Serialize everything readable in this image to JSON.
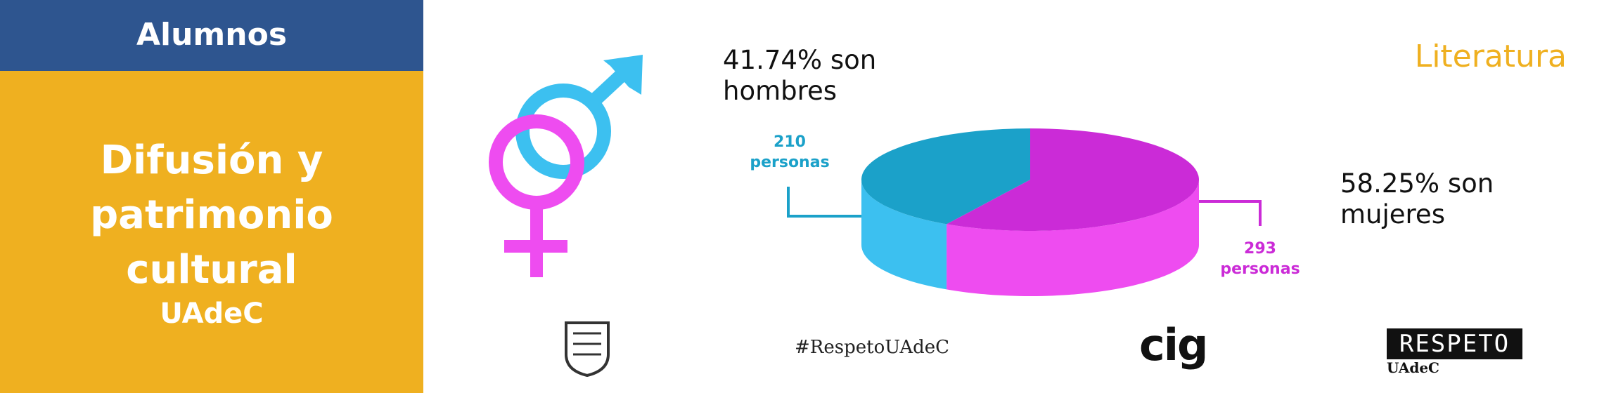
{
  "sidebar": {
    "header": "Alumnos",
    "title": "Difusión y patrimonio cultural",
    "subtitle": "UAdeC"
  },
  "chart_data": {
    "type": "pie",
    "title": "Literatura",
    "values": [
      210,
      293
    ],
    "value_labels": [
      "210 personas",
      "293 personas"
    ],
    "annotations": [
      "41.74% son hombres",
      "58.25% son mujeres"
    ],
    "colors": [
      "#1ba1c9",
      "#cb2bd7"
    ],
    "side_colors": [
      "#3cc0f0",
      "#ee4cf0"
    ]
  },
  "footer": {
    "hashtag": "#RespetoUAdeC",
    "logo_cig": "cig",
    "logo_respeto": "RESPETO",
    "logo_respeto_sub": "UAdeC"
  }
}
